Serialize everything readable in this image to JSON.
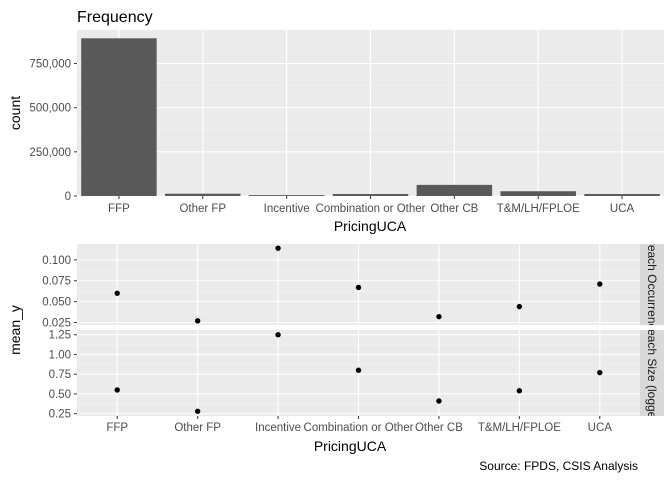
{
  "caption": "Source: FPDS, CSIS Analysis",
  "colors": {
    "panel_bg": "#ebebeb",
    "grid_major": "#ffffff",
    "grid_minor": "#f4f4f4",
    "bar_fill": "#595959",
    "point": "#000000",
    "axis_text": "#4d4d4d",
    "title_text": "#000000",
    "strip_bg": "#d9d9d9",
    "strip_text": "#1a1a1a"
  },
  "chart_data": [
    {
      "type": "bar",
      "title": "Frequency",
      "xlabel": "PricingUCA",
      "ylabel": "count",
      "categories": [
        "FFP",
        "Other FP",
        "Incentive",
        "Combination or Other",
        "Other CB",
        "T&M/LH/FPLOE",
        "UCA"
      ],
      "values": [
        893000,
        13000,
        5000,
        11000,
        63000,
        27000,
        11000
      ],
      "ylim": [
        0,
        940000
      ],
      "yticks": [
        0,
        250000,
        500000,
        750000
      ],
      "ytick_labels": [
        "0",
        "250,000",
        "500,000",
        "750,000"
      ],
      "grid": true
    },
    {
      "type": "scatter",
      "xlabel": "PricingUCA",
      "ylabel": "mean_y",
      "categories": [
        "FFP",
        "Other FP",
        "Incentive",
        "Combination or Other",
        "Other CB",
        "T&M/LH/FPLOE",
        "UCA"
      ],
      "grid": true,
      "facets": [
        {
          "strip_label": "Breach Occurrence",
          "values": [
            0.06,
            0.027,
            0.114,
            0.067,
            0.032,
            0.044,
            0.071
          ],
          "ylim": [
            0.022,
            0.119
          ],
          "yticks": [
            0.025,
            0.05,
            0.075,
            0.1
          ],
          "ytick_labels": [
            "0.025",
            "0.050",
            "0.075",
            "0.100"
          ]
        },
        {
          "strip_label": "Breach Size (logged)",
          "values": [
            0.55,
            0.28,
            1.25,
            0.8,
            0.41,
            0.54,
            0.77
          ],
          "ylim": [
            0.22,
            1.31
          ],
          "yticks": [
            0.25,
            0.5,
            0.75,
            1.0,
            1.25
          ],
          "ytick_labels": [
            "0.25",
            "0.50",
            "0.75",
            "1.00",
            "1.25"
          ]
        }
      ]
    }
  ]
}
